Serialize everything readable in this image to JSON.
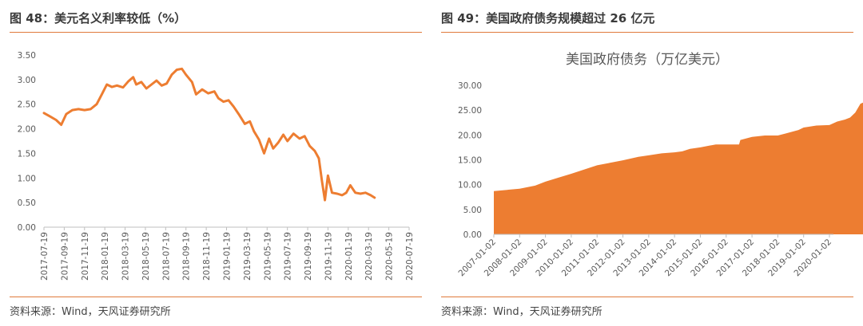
{
  "left_panel": {
    "title": "图 48：美元名义利率较低（%）",
    "source": "资料来源：Wind，天风证券研究所"
  },
  "right_panel": {
    "title": "图 49：美国政府债务规模超过 26 亿元",
    "source": "资料来源：Wind，天风证券研究所"
  },
  "colors": {
    "accent": "#e07a3c",
    "series": "#ed7d31",
    "text": "#595959"
  },
  "chart_data": [
    {
      "type": "line",
      "title": "",
      "xlabel": "",
      "ylabel": "",
      "ylim": [
        0,
        3.5
      ],
      "yticks": [
        "0.00",
        "0.50",
        "1.00",
        "1.50",
        "2.00",
        "2.50",
        "3.00",
        "3.50"
      ],
      "categories": [
        "2017-07-19",
        "2017-09-19",
        "2017-11-19",
        "2018-01-19",
        "2018-03-19",
        "2018-05-19",
        "2018-07-19",
        "2018-09-19",
        "2018-11-19",
        "2019-01-19",
        "2019-03-19",
        "2019-05-19",
        "2019-07-19",
        "2019-09-19",
        "2019-11-19",
        "2020-01-19",
        "2020-03-19",
        "2020-05-19",
        "2020-07-19"
      ],
      "series": [
        {
          "values": [
            [
              0,
              2.32
            ],
            [
              0.3,
              2.25
            ],
            [
              0.6,
              2.18
            ],
            [
              0.85,
              2.08
            ],
            [
              1.1,
              2.3
            ],
            [
              1.4,
              2.38
            ],
            [
              1.7,
              2.4
            ],
            [
              2.0,
              2.38
            ],
            [
              2.3,
              2.4
            ],
            [
              2.6,
              2.5
            ],
            [
              2.85,
              2.7
            ],
            [
              3.1,
              2.9
            ],
            [
              3.35,
              2.85
            ],
            [
              3.6,
              2.88
            ],
            [
              3.9,
              2.84
            ],
            [
              4.15,
              2.96
            ],
            [
              4.4,
              3.05
            ],
            [
              4.55,
              2.9
            ],
            [
              4.8,
              2.95
            ],
            [
              5.05,
              2.82
            ],
            [
              5.3,
              2.9
            ],
            [
              5.55,
              2.98
            ],
            [
              5.8,
              2.88
            ],
            [
              6.05,
              2.92
            ],
            [
              6.3,
              3.1
            ],
            [
              6.55,
              3.2
            ],
            [
              6.8,
              3.22
            ],
            [
              7.0,
              3.1
            ],
            [
              7.3,
              2.95
            ],
            [
              7.5,
              2.7
            ],
            [
              7.8,
              2.8
            ],
            [
              8.1,
              2.72
            ],
            [
              8.4,
              2.76
            ],
            [
              8.6,
              2.62
            ],
            [
              8.85,
              2.55
            ],
            [
              9.1,
              2.58
            ],
            [
              9.35,
              2.45
            ],
            [
              9.6,
              2.3
            ],
            [
              9.9,
              2.1
            ],
            [
              10.15,
              2.15
            ],
            [
              10.35,
              1.95
            ],
            [
              10.6,
              1.78
            ],
            [
              10.85,
              1.5
            ],
            [
              11.1,
              1.8
            ],
            [
              11.3,
              1.6
            ],
            [
              11.55,
              1.72
            ],
            [
              11.8,
              1.88
            ],
            [
              12.0,
              1.75
            ],
            [
              12.3,
              1.9
            ],
            [
              12.6,
              1.8
            ],
            [
              12.85,
              1.85
            ],
            [
              13.1,
              1.65
            ],
            [
              13.35,
              1.55
            ],
            [
              13.55,
              1.4
            ],
            [
              13.7,
              0.95
            ],
            [
              13.85,
              0.55
            ],
            [
              14.0,
              1.05
            ],
            [
              14.2,
              0.7
            ],
            [
              14.45,
              0.68
            ],
            [
              14.7,
              0.65
            ],
            [
              14.9,
              0.7
            ],
            [
              15.1,
              0.85
            ],
            [
              15.35,
              0.7
            ],
            [
              15.6,
              0.68
            ],
            [
              15.85,
              0.7
            ],
            [
              16.1,
              0.65
            ],
            [
              16.3,
              0.6
            ]
          ]
        }
      ]
    },
    {
      "type": "area",
      "title": "美国政府债务（万亿美元）",
      "xlabel": "",
      "ylabel": "",
      "ylim": [
        0,
        30
      ],
      "yticks": [
        "0.00",
        "5.00",
        "10.00",
        "15.00",
        "20.00",
        "25.00",
        "30.00"
      ],
      "categories": [
        "2007-01-02",
        "2008-01-02",
        "2009-01-02",
        "2010-01-02",
        "2011-01-02",
        "2012-01-02",
        "2013-01-02",
        "2014-01-02",
        "2015-01-02",
        "2016-01-02",
        "2017-01-02",
        "2018-01-02",
        "2019-01-02",
        "2020-01-02"
      ],
      "series": [
        {
          "values": [
            [
              0,
              8.7
            ],
            [
              1,
              9.2
            ],
            [
              1.6,
              9.8
            ],
            [
              2,
              10.6
            ],
            [
              2.5,
              11.4
            ],
            [
              3,
              12.2
            ],
            [
              4,
              13.9
            ],
            [
              5,
              14.9
            ],
            [
              5.6,
              15.6
            ],
            [
              6,
              15.9
            ],
            [
              6.5,
              16.3
            ],
            [
              7,
              16.5
            ],
            [
              7.3,
              16.7
            ],
            [
              7.6,
              17.2
            ],
            [
              8,
              17.5
            ],
            [
              8.6,
              18.1
            ],
            [
              9,
              18.1
            ],
            [
              9.5,
              18.1
            ],
            [
              9.55,
              19.0
            ],
            [
              10,
              19.6
            ],
            [
              10.5,
              19.9
            ],
            [
              11,
              19.9
            ],
            [
              11.3,
              20.3
            ],
            [
              11.8,
              21.0
            ],
            [
              12,
              21.5
            ],
            [
              12.5,
              21.9
            ],
            [
              13,
              22.0
            ],
            [
              13.3,
              22.7
            ],
            [
              13.6,
              23.1
            ],
            [
              13.8,
              23.5
            ],
            [
              14,
              24.5
            ],
            [
              14.2,
              26.3
            ],
            [
              14.3,
              26.5
            ]
          ]
        }
      ]
    }
  ]
}
